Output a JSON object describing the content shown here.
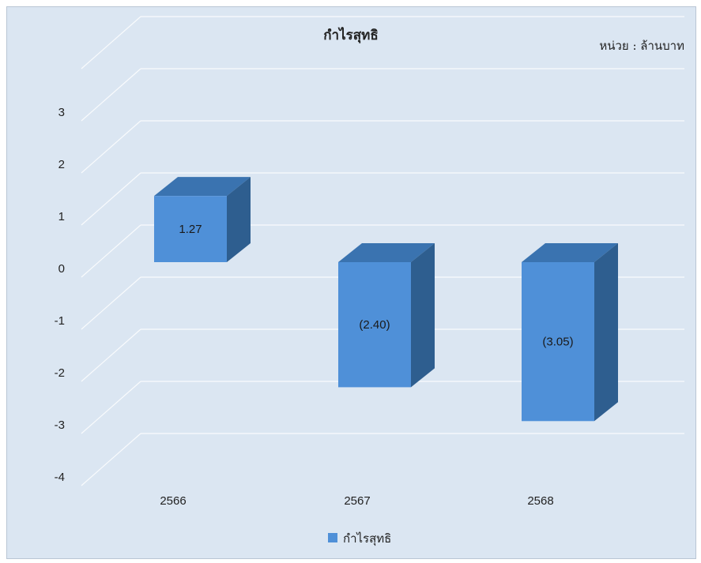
{
  "chart_data": {
    "type": "bar",
    "title": "กำไรสุทธิ",
    "unit_note": "หน่วย : ล้านบาท",
    "categories": [
      "2566",
      "2567",
      "2568"
    ],
    "series": [
      {
        "name": "กำไรสุทธิ",
        "values": [
          1.27,
          -2.4,
          -3.05
        ],
        "labels": [
          "1.27",
          "(2.40)",
          "(3.05)"
        ],
        "color": "#4f90d8"
      }
    ],
    "ylim": [
      -4,
      3
    ],
    "yticks": [
      "3",
      "2",
      "1",
      "0",
      "-1",
      "-2",
      "-3",
      "-4"
    ],
    "grid": true,
    "legend": "bottom-center",
    "colors": {
      "front": "#4f90d8",
      "top": "#3a73b0",
      "side": "#2e5e8f",
      "background": "#dbe6f2"
    }
  }
}
